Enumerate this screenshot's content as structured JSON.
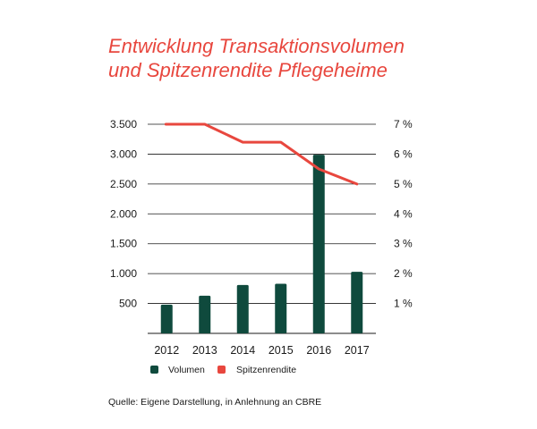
{
  "title_line1": "Entwicklung Transaktionsvolumen",
  "title_line2": "und Spitzenrendite Pflegeheime",
  "source": "Quelle: Eigene Darstellung, in Anlehnung an CBRE",
  "colors": {
    "title": "#e8473e",
    "bar": "#0f4a3d",
    "line": "#e8473e",
    "grid": "#1a1a1a"
  },
  "chart_data": {
    "type": "bar",
    "categories": [
      "2012",
      "2013",
      "2014",
      "2015",
      "2016",
      "2017"
    ],
    "series": [
      {
        "name": "Volumen",
        "kind": "bar",
        "axis": "left",
        "values": [
          480,
          630,
          810,
          830,
          2990,
          1030
        ]
      },
      {
        "name": "Spitzenrendite",
        "kind": "line",
        "axis": "right",
        "values": [
          7.0,
          7.0,
          6.4,
          6.4,
          5.5,
          5.0
        ]
      }
    ],
    "ylim_left": [
      0,
      3500
    ],
    "ylim_right": [
      0,
      7
    ],
    "left_ticks": [
      {
        "value": 500,
        "label": "500"
      },
      {
        "value": 1000,
        "label": "1.000"
      },
      {
        "value": 1500,
        "label": "1.500"
      },
      {
        "value": 2000,
        "label": "2.000"
      },
      {
        "value": 2500,
        "label": "2.500"
      },
      {
        "value": 3000,
        "label": "3.000"
      },
      {
        "value": 3500,
        "label": "3.500"
      }
    ],
    "right_ticks": [
      {
        "value": 1,
        "label": "1 %"
      },
      {
        "value": 2,
        "label": "2 %"
      },
      {
        "value": 3,
        "label": "3 %"
      },
      {
        "value": 4,
        "label": "4 %"
      },
      {
        "value": 5,
        "label": "5 %"
      },
      {
        "value": 6,
        "label": "6 %"
      },
      {
        "value": 7,
        "label": "7 %"
      }
    ],
    "grid": true,
    "legend": [
      "Volumen",
      "Spitzenrendite"
    ],
    "legend_position": "bottom-left"
  }
}
